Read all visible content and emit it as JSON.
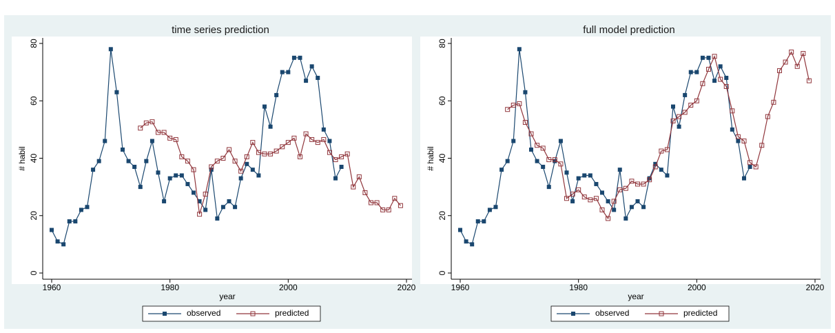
{
  "chart_data": [
    {
      "type": "line",
      "title": "time series prediction",
      "x_label": "year",
      "y_label": "# habil",
      "xlim": [
        1960,
        2020
      ],
      "ylim": [
        0,
        80
      ],
      "xticks": [
        1960,
        1980,
        2000,
        2020
      ],
      "yticks": [
        0,
        20,
        40,
        60,
        80
      ],
      "grid": false,
      "series": [
        {
          "name": "observed",
          "color": "#1a476f",
          "marker": "filled-square",
          "x": [
            1960,
            1961,
            1962,
            1963,
            1964,
            1965,
            1966,
            1967,
            1968,
            1969,
            1970,
            1971,
            1972,
            1973,
            1974,
            1975,
            1976,
            1977,
            1978,
            1979,
            1980,
            1981,
            1982,
            1983,
            1984,
            1985,
            1986,
            1987,
            1988,
            1989,
            1990,
            1991,
            1992,
            1993,
            1994,
            1995,
            1996,
            1997,
            1998,
            1999,
            2000,
            2001,
            2002,
            2003,
            2004,
            2005,
            2006,
            2007,
            2008,
            2009
          ],
          "values": [
            15,
            11,
            10,
            18,
            18,
            22,
            23,
            36,
            39,
            46,
            78,
            63,
            43,
            39,
            37,
            30,
            39,
            46,
            35,
            25,
            33,
            34,
            34,
            31,
            28,
            25,
            22,
            36,
            19,
            23,
            25,
            23,
            33,
            38,
            36,
            34,
            58,
            51,
            62,
            70,
            70,
            75,
            75,
            67,
            72,
            68,
            50,
            46,
            33,
            37
          ]
        },
        {
          "name": "predicted",
          "color": "#90353b",
          "marker": "hollow-square",
          "x": [
            1975,
            1976,
            1977,
            1978,
            1979,
            1980,
            1981,
            1982,
            1983,
            1984,
            1985,
            1986,
            1987,
            1988,
            1989,
            1990,
            1991,
            1992,
            1993,
            1994,
            1995,
            1996,
            1997,
            1998,
            1999,
            2000,
            2001,
            2002,
            2003,
            2004,
            2005,
            2006,
            2007,
            2008,
            2009,
            2010,
            2011,
            2012,
            2013,
            2014,
            2015,
            2016,
            2017,
            2018,
            2019
          ],
          "values": [
            50.5,
            52.3,
            52.7,
            49,
            49,
            47,
            46.5,
            40.5,
            39,
            36,
            20.5,
            27.5,
            37,
            39,
            40,
            43,
            39,
            35.5,
            40.5,
            45.5,
            42,
            41.5,
            41.5,
            42.5,
            44,
            45.5,
            47,
            40.5,
            48.5,
            46.5,
            45.5,
            46.5,
            42,
            39.5,
            40.5,
            41.5,
            30,
            33.5,
            28,
            24.5,
            24.5,
            22,
            22,
            26,
            23.5
          ]
        }
      ]
    },
    {
      "type": "line",
      "title": "full model prediction",
      "x_label": "year",
      "y_label": "# habil",
      "xlim": [
        1960,
        2020
      ],
      "ylim": [
        0,
        80
      ],
      "xticks": [
        1960,
        1980,
        2000,
        2020
      ],
      "yticks": [
        0,
        20,
        40,
        60,
        80
      ],
      "grid": false,
      "series": [
        {
          "name": "observed",
          "color": "#1a476f",
          "marker": "filled-square",
          "x": [
            1960,
            1961,
            1962,
            1963,
            1964,
            1965,
            1966,
            1967,
            1968,
            1969,
            1970,
            1971,
            1972,
            1973,
            1974,
            1975,
            1976,
            1977,
            1978,
            1979,
            1980,
            1981,
            1982,
            1983,
            1984,
            1985,
            1986,
            1987,
            1988,
            1989,
            1990,
            1991,
            1992,
            1993,
            1994,
            1995,
            1996,
            1997,
            1998,
            1999,
            2000,
            2001,
            2002,
            2003,
            2004,
            2005,
            2006,
            2007,
            2008,
            2009
          ],
          "values": [
            15,
            11,
            10,
            18,
            18,
            22,
            23,
            36,
            39,
            46,
            78,
            63,
            43,
            39,
            37,
            30,
            39,
            46,
            35,
            25,
            33,
            34,
            34,
            31,
            28,
            25,
            22,
            36,
            19,
            23,
            25,
            23,
            33,
            38,
            36,
            34,
            58,
            51,
            62,
            70,
            70,
            75,
            75,
            67,
            72,
            68,
            50,
            46,
            33,
            37
          ]
        },
        {
          "name": "predicted",
          "color": "#90353b",
          "marker": "hollow-square",
          "x": [
            1968,
            1969,
            1970,
            1971,
            1972,
            1973,
            1974,
            1975,
            1976,
            1977,
            1978,
            1979,
            1980,
            1981,
            1982,
            1983,
            1984,
            1985,
            1986,
            1987,
            1988,
            1989,
            1990,
            1991,
            1992,
            1993,
            1994,
            1995,
            1996,
            1997,
            1998,
            1999,
            2000,
            2001,
            2002,
            2003,
            2004,
            2005,
            2006,
            2007,
            2008,
            2009,
            2010,
            2011,
            2012,
            2013,
            2014,
            2015,
            2016,
            2017,
            2018,
            2019
          ],
          "values": [
            57,
            58.5,
            59,
            52.5,
            48.5,
            44.5,
            43.5,
            39.5,
            39.5,
            38,
            26,
            27.5,
            29,
            26.5,
            25.5,
            26,
            22,
            19,
            25,
            29,
            29.5,
            32,
            31,
            31,
            32.5,
            37,
            42.5,
            43,
            53,
            54.5,
            56,
            58.5,
            60,
            66,
            71,
            75.5,
            67.5,
            65,
            56.5,
            47.5,
            46,
            38.5,
            37,
            44.5,
            54.5,
            59.5,
            70.5,
            73.5,
            77,
            72,
            76.5,
            67
          ]
        }
      ]
    }
  ]
}
